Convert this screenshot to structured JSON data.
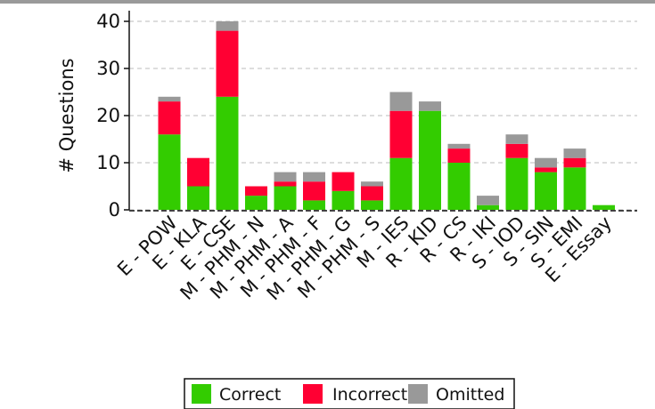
{
  "chart_data": {
    "type": "bar",
    "stacked": true,
    "ylabel": "# Questions",
    "xlabel": "",
    "ylim": [
      0,
      42
    ],
    "yticks": [
      0,
      10,
      20,
      30,
      40
    ],
    "grid": true,
    "legend_position": "bottom-center",
    "categories": [
      "E - POW",
      "E - KLA",
      "E - CSE",
      "M - PHM - N",
      "M - PHM - A",
      "M - PHM - F",
      "M - PHM - G",
      "M - PHM - S",
      "M - IES",
      "R - KID",
      "R - CS",
      "R - IKI",
      "S - IOD",
      "S - SIN",
      "S - EMI",
      "E - Essay"
    ],
    "series": [
      {
        "name": "Correct",
        "color": "#33cc00",
        "values": [
          16,
          5,
          24,
          3,
          5,
          2,
          4,
          2,
          11,
          21,
          10,
          1,
          11,
          8,
          9,
          1
        ]
      },
      {
        "name": "Incorrect",
        "color": "#ff0033",
        "values": [
          7,
          6,
          14,
          2,
          1,
          4,
          4,
          3,
          10,
          0,
          3,
          0,
          3,
          1,
          2,
          0
        ]
      },
      {
        "name": "Omitted",
        "color": "#999999",
        "values": [
          1,
          0,
          2,
          0,
          2,
          2,
          0,
          1,
          4,
          2,
          1,
          2,
          2,
          2,
          2,
          0
        ]
      }
    ]
  }
}
